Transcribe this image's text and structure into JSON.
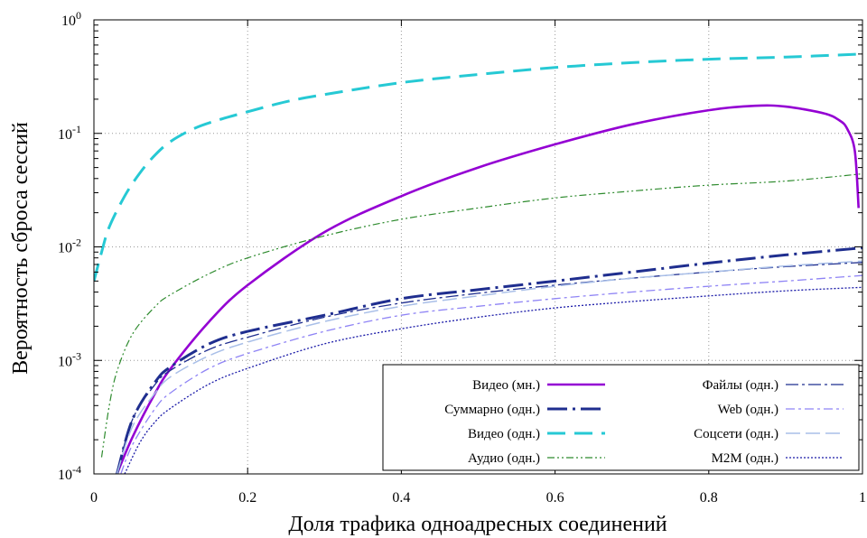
{
  "chart_data": {
    "type": "line",
    "title": "",
    "xlabel": "Доля трафика одноадресных соединений",
    "ylabel": "Вероятность сброса сессий",
    "xlim": [
      0,
      1
    ],
    "ylim": [
      0.0001,
      1
    ],
    "y_scale": "log",
    "grid": true,
    "legend_position": "bottom-right",
    "x_ticks": [
      {
        "value": 0,
        "label": "0"
      },
      {
        "value": 0.2,
        "label": "0.2"
      },
      {
        "value": 0.4,
        "label": "0.4"
      },
      {
        "value": 0.6,
        "label": "0.6"
      },
      {
        "value": 0.8,
        "label": "0.8"
      },
      {
        "value": 1,
        "label": "1"
      }
    ],
    "y_ticks": [
      {
        "value": 0.0001,
        "base": "10",
        "exp": "-4"
      },
      {
        "value": 0.001,
        "base": "10",
        "exp": "-3"
      },
      {
        "value": 0.01,
        "base": "10",
        "exp": "-2"
      },
      {
        "value": 0.1,
        "base": "10",
        "exp": "-1"
      },
      {
        "value": 1,
        "base": "10",
        "exp": "0"
      }
    ],
    "series": [
      {
        "name": "Видео (мн.)",
        "color": "#9400d3",
        "dash": "",
        "width": 2.6,
        "x": [
          0.03,
          0.05,
          0.08,
          0.1,
          0.15,
          0.2,
          0.3,
          0.4,
          0.5,
          0.6,
          0.7,
          0.8,
          0.86,
          0.9,
          0.95,
          0.97,
          0.98,
          0.99,
          0.995
        ],
        "y": [
          0.0001,
          0.00021,
          0.00052,
          0.00085,
          0.0022,
          0.0046,
          0.0135,
          0.028,
          0.05,
          0.08,
          0.12,
          0.16,
          0.175,
          0.172,
          0.15,
          0.13,
          0.11,
          0.07,
          0.022
        ]
      },
      {
        "name": "Суммарно (одн.)",
        "color": "#1f2e8f",
        "dash": "22,6,3,6",
        "width": 3,
        "x": [
          0.03,
          0.05,
          0.08,
          0.1,
          0.15,
          0.2,
          0.3,
          0.4,
          0.5,
          0.6,
          0.7,
          0.8,
          0.9,
          1.0
        ],
        "y": [
          0.0001,
          0.0003,
          0.00065,
          0.00088,
          0.0014,
          0.0018,
          0.0025,
          0.0035,
          0.0042,
          0.005,
          0.006,
          0.0072,
          0.0085,
          0.0098
        ]
      },
      {
        "name": "Видео (одн.)",
        "color": "#26c9d4",
        "dash": "20,10",
        "width": 3,
        "x": [
          0.0,
          0.01,
          0.02,
          0.04,
          0.06,
          0.08,
          0.1,
          0.13,
          0.16,
          0.2,
          0.25,
          0.3,
          0.4,
          0.5,
          0.6,
          0.7,
          0.8,
          0.9,
          1.0
        ],
        "y": [
          0.005,
          0.009,
          0.015,
          0.028,
          0.045,
          0.065,
          0.085,
          0.11,
          0.13,
          0.155,
          0.19,
          0.22,
          0.28,
          0.33,
          0.38,
          0.42,
          0.45,
          0.47,
          0.5
        ]
      },
      {
        "name": "Аудио (одн.)",
        "color": "#2e8b2e",
        "dash": "8,3,2,3,2,3",
        "width": 1.2,
        "x": [
          0.01,
          0.02,
          0.03,
          0.05,
          0.08,
          0.1,
          0.15,
          0.2,
          0.3,
          0.4,
          0.5,
          0.6,
          0.7,
          0.8,
          0.9,
          1.0
        ],
        "y": [
          0.00014,
          0.0004,
          0.0008,
          0.0017,
          0.003,
          0.0038,
          0.0058,
          0.008,
          0.0125,
          0.0175,
          0.022,
          0.027,
          0.031,
          0.035,
          0.038,
          0.044
        ]
      },
      {
        "name": "Файлы (одн.)",
        "color": "#1f2e8f",
        "dash": "14,4,3,4",
        "width": 1.3,
        "x": [
          0.03,
          0.05,
          0.08,
          0.1,
          0.15,
          0.2,
          0.3,
          0.4,
          0.5,
          0.6,
          0.7,
          0.8,
          0.9,
          1.0
        ],
        "y": [
          0.0001,
          0.0003,
          0.00062,
          0.00082,
          0.00125,
          0.0016,
          0.0024,
          0.0032,
          0.0039,
          0.0046,
          0.0053,
          0.006,
          0.0067,
          0.0073
        ]
      },
      {
        "name": "Web (одн.)",
        "color": "#8f84f5",
        "dash": "10,4,3,4",
        "width": 1.3,
        "x": [
          0.035,
          0.05,
          0.08,
          0.1,
          0.15,
          0.2,
          0.3,
          0.4,
          0.5,
          0.6,
          0.7,
          0.8,
          0.9,
          1.0
        ],
        "y": [
          0.0001,
          0.00018,
          0.00038,
          0.00052,
          0.00085,
          0.00115,
          0.0018,
          0.0025,
          0.003,
          0.0035,
          0.004,
          0.0045,
          0.005,
          0.0056
        ]
      },
      {
        "name": "Соцсети (одн.)",
        "color": "#a9bfe8",
        "dash": "16,6",
        "width": 1.5,
        "x": [
          0.03,
          0.05,
          0.08,
          0.1,
          0.15,
          0.2,
          0.3,
          0.4,
          0.5,
          0.6,
          0.7,
          0.8,
          0.9,
          1.0
        ],
        "y": [
          0.0001,
          0.00026,
          0.00052,
          0.00072,
          0.0011,
          0.00145,
          0.0022,
          0.003,
          0.0037,
          0.0045,
          0.0053,
          0.006,
          0.0068,
          0.0075
        ]
      },
      {
        "name": "M2M (одн.)",
        "color": "#1a1aa8",
        "dash": "2,2",
        "width": 1.3,
        "x": [
          0.04,
          0.06,
          0.08,
          0.1,
          0.15,
          0.2,
          0.3,
          0.4,
          0.5,
          0.6,
          0.7,
          0.8,
          0.9,
          1.0
        ],
        "y": [
          0.0001,
          0.00019,
          0.00029,
          0.00038,
          0.00062,
          0.00085,
          0.0014,
          0.0019,
          0.0024,
          0.0029,
          0.0033,
          0.0037,
          0.0041,
          0.0044
        ]
      }
    ],
    "legend_columns": [
      [
        0,
        1,
        2,
        3
      ],
      [
        4,
        5,
        6,
        7
      ]
    ]
  }
}
